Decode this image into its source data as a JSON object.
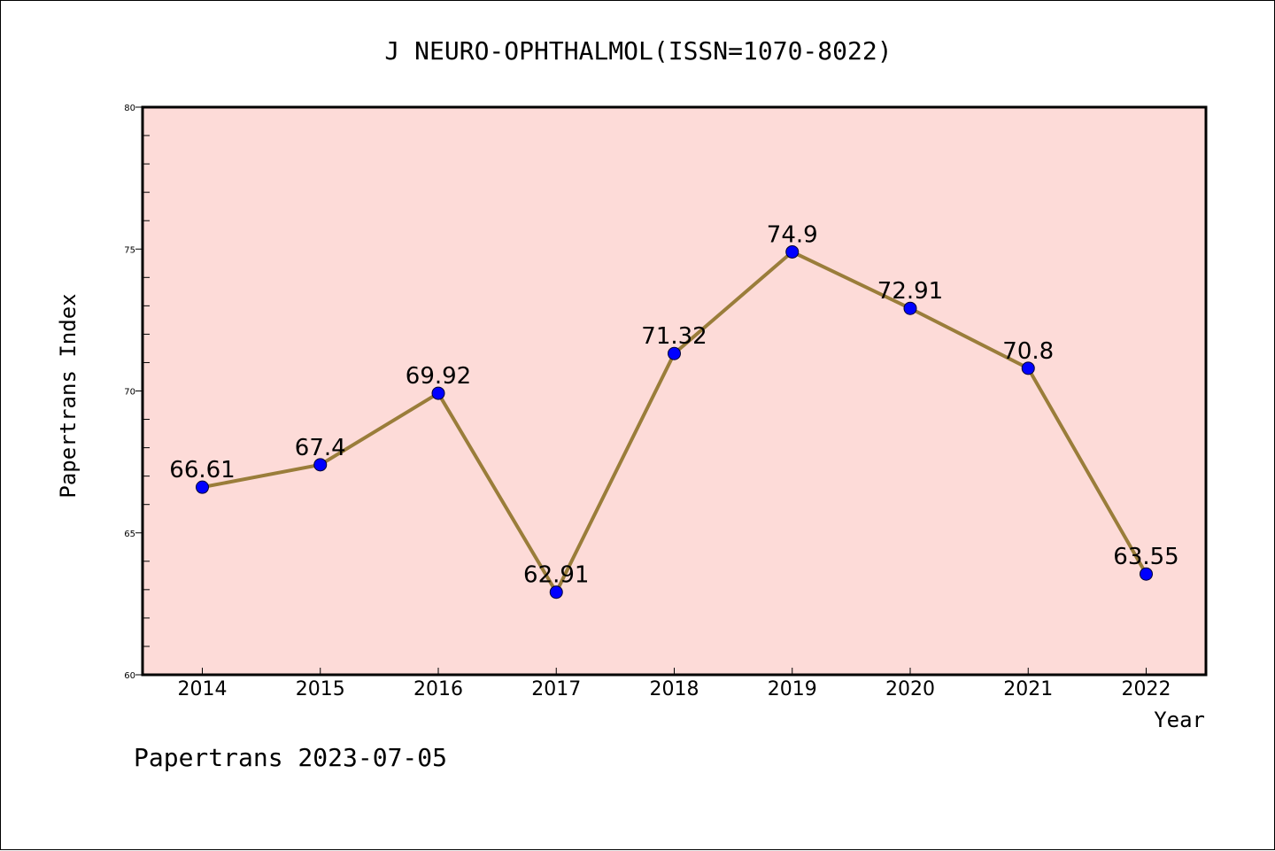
{
  "chart_data": {
    "type": "line",
    "title": "J NEURO-OPHTHALMOL(ISSN=1070-8022)",
    "xlabel": "Year",
    "ylabel": "Papertrans Index",
    "categories": [
      "2014",
      "2015",
      "2016",
      "2017",
      "2018",
      "2019",
      "2020",
      "2021",
      "2022"
    ],
    "series": [
      {
        "values": [
          66.61,
          67.4,
          69.92,
          62.91,
          71.32,
          74.9,
          72.91,
          70.8,
          63.55
        ],
        "labels": [
          "66.61",
          "67.4",
          "69.92",
          "62.91",
          "71.32",
          "74.9",
          "72.91",
          "70.8",
          "63.55"
        ],
        "line_color": "#9a7d3a",
        "marker_color": "#0000ff"
      }
    ],
    "ylim": [
      60,
      80
    ],
    "yticks": [
      "60",
      "65",
      "70",
      "75",
      "80"
    ],
    "grid": false,
    "plot_background": "#fddbd8",
    "footer": "Papertrans 2023-07-05"
  }
}
